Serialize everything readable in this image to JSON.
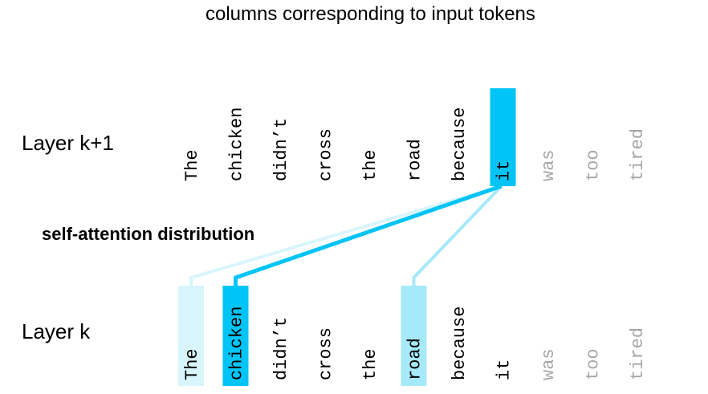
{
  "title": "columns corresponding to input tokens",
  "attention_label": "self-attention distribution",
  "layers": {
    "upper_label": "Layer k+1",
    "lower_label": "Layer k"
  },
  "tokens": [
    "The",
    "chicken",
    "didn’t",
    "cross",
    "the",
    "road",
    "because",
    "it",
    "was",
    "too",
    "tired"
  ],
  "query_token_index": 7,
  "attention_weights": [
    0.15,
    1.0,
    0,
    0,
    0,
    0.4,
    0,
    0,
    0,
    0,
    0
  ],
  "colors": {
    "strong": "#00c4f5",
    "medium": "#a6e9f9",
    "weak": "#d8f5fc",
    "text_active": "#000000",
    "text_inactive": "#a6a6a6"
  }
}
